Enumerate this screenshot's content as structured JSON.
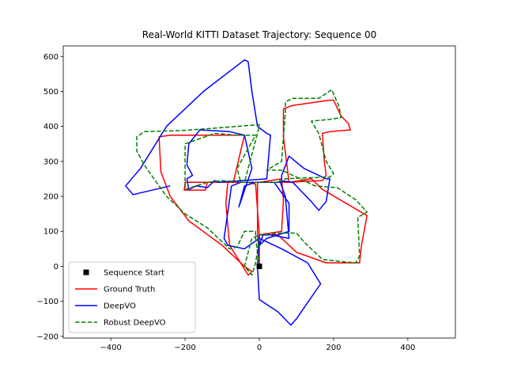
{
  "chart_data": {
    "type": "line",
    "title": "Real-World KITTI Dataset Trajectory: Sequence 00",
    "xlabel": "",
    "ylabel": "",
    "xlim": [
      -528,
      528
    ],
    "ylim": [
      -205,
      630
    ],
    "xticks": [
      -400,
      -200,
      0,
      200,
      400
    ],
    "yticks": [
      -200,
      -100,
      0,
      100,
      200,
      300,
      400,
      500,
      600
    ],
    "xtick_labels": [
      "−400",
      "−200",
      "0",
      "200",
      "400"
    ],
    "ytick_labels": [
      "−200",
      "−100",
      "0",
      "100",
      "200",
      "300",
      "400",
      "500",
      "600"
    ],
    "grid": false,
    "legend_position": "lower-left",
    "legend": [
      "Sequence Start",
      "Ground Truth",
      "DeepVO",
      "Robust DeepVO"
    ],
    "start_point": {
      "name": "Sequence Start",
      "x": 0,
      "y": 0,
      "color": "#000000",
      "marker": "square"
    },
    "series": [
      {
        "name": "Ground Truth",
        "color": "#ff0000",
        "style": "solid",
        "points": [
          [
            0,
            0
          ],
          [
            0,
            90
          ],
          [
            -10,
            235
          ],
          [
            -30,
            240
          ],
          [
            -200,
            240
          ],
          [
            -202,
            218
          ],
          [
            -145,
            218
          ],
          [
            -140,
            240
          ],
          [
            -70,
            240
          ],
          [
            -40,
            375
          ],
          [
            -240,
            375
          ],
          [
            -270,
            370
          ],
          [
            -265,
            270
          ],
          [
            -240,
            200
          ],
          [
            -190,
            130
          ],
          [
            -100,
            60
          ],
          [
            -40,
            0
          ],
          [
            -20,
            -15
          ],
          [
            -30,
            -25
          ],
          [
            -80,
            60
          ],
          [
            -90,
            180
          ],
          [
            -85,
            240
          ],
          [
            0,
            240
          ],
          [
            60,
            250
          ],
          [
            65,
            190
          ],
          [
            60,
            100
          ],
          [
            0,
            90
          ],
          [
            50,
            90
          ],
          [
            100,
            40
          ],
          [
            180,
            10
          ],
          [
            270,
            10
          ],
          [
            275,
            60
          ],
          [
            290,
            145
          ],
          [
            170,
            220
          ],
          [
            140,
            250
          ],
          [
            80,
            240
          ],
          [
            65,
            370
          ],
          [
            65,
            450
          ],
          [
            90,
            460
          ],
          [
            190,
            475
          ],
          [
            200,
            475
          ],
          [
            220,
            430
          ],
          [
            240,
            408
          ],
          [
            245,
            390
          ],
          [
            190,
            385
          ],
          [
            170,
            380
          ],
          [
            175,
            300
          ],
          [
            180,
            260
          ],
          [
            170,
            245
          ],
          [
            75,
            240
          ],
          [
            40,
            240
          ],
          [
            -5,
            240
          ],
          [
            -5,
            100
          ],
          [
            0,
            0
          ]
        ]
      },
      {
        "name": "DeepVO",
        "color": "#0000ff",
        "style": "solid",
        "points": [
          [
            -240,
            230
          ],
          [
            -280,
            220
          ],
          [
            -340,
            205
          ],
          [
            -360,
            230
          ],
          [
            -320,
            280
          ],
          [
            -250,
            400
          ],
          [
            -150,
            500
          ],
          [
            -40,
            590
          ],
          [
            -30,
            585
          ],
          [
            -20,
            500
          ],
          [
            -5,
            400
          ],
          [
            20,
            380
          ],
          [
            30,
            375
          ],
          [
            20,
            250
          ],
          [
            -110,
            240
          ],
          [
            -120,
            245
          ],
          [
            -140,
            225
          ],
          [
            -170,
            230
          ],
          [
            -190,
            220
          ],
          [
            -195,
            250
          ],
          [
            -180,
            260
          ],
          [
            -195,
            290
          ],
          [
            -190,
            350
          ],
          [
            -160,
            390
          ],
          [
            -80,
            385
          ],
          [
            -40,
            375
          ],
          [
            -20,
            280
          ],
          [
            -55,
            170
          ],
          [
            -40,
            230
          ],
          [
            -10,
            240
          ],
          [
            20,
            240
          ],
          [
            40,
            240
          ],
          [
            80,
            180
          ],
          [
            80,
            100
          ],
          [
            50,
            90
          ],
          [
            20,
            80
          ],
          [
            0,
            60
          ],
          [
            10,
            90
          ],
          [
            30,
            90
          ],
          [
            80,
            80
          ],
          [
            70,
            200
          ],
          [
            55,
            245
          ],
          [
            90,
            240
          ],
          [
            140,
            185
          ],
          [
            160,
            160
          ],
          [
            180,
            185
          ],
          [
            190,
            250
          ],
          [
            180,
            250
          ],
          [
            120,
            280
          ],
          [
            80,
            315
          ],
          [
            60,
            260
          ],
          [
            60,
            240
          ],
          [
            -20,
            240
          ],
          [
            -50,
            240
          ],
          [
            -75,
            230
          ],
          [
            -95,
            80
          ],
          [
            -85,
            60
          ],
          [
            -40,
            50
          ],
          [
            0,
            80
          ],
          [
            60,
            50
          ],
          [
            130,
            10
          ],
          [
            165,
            -50
          ],
          [
            100,
            -150
          ],
          [
            85,
            -168
          ],
          [
            50,
            -130
          ],
          [
            0,
            -95
          ],
          [
            -5,
            0
          ],
          [
            0,
            90
          ]
        ]
      },
      {
        "name": "Robust DeepVO",
        "color": "#008000",
        "style": "dashed",
        "points": [
          [
            0,
            0
          ],
          [
            -10,
            80
          ],
          [
            -10,
            100
          ],
          [
            -40,
            100
          ],
          [
            -60,
            55
          ],
          [
            -80,
            50
          ],
          [
            -140,
            110
          ],
          [
            -200,
            150
          ],
          [
            -250,
            200
          ],
          [
            -310,
            290
          ],
          [
            -330,
            330
          ],
          [
            -330,
            370
          ],
          [
            -310,
            385
          ],
          [
            -210,
            388
          ],
          [
            -120,
            395
          ],
          [
            0,
            405
          ],
          [
            0,
            400
          ],
          [
            -30,
            280
          ],
          [
            -40,
            240
          ],
          [
            -100,
            245
          ],
          [
            -140,
            240
          ],
          [
            -200,
            220
          ],
          [
            -200,
            350
          ],
          [
            -120,
            380
          ],
          [
            -60,
            375
          ],
          [
            -10,
            375
          ],
          [
            -60,
            280
          ],
          [
            -50,
            240
          ],
          [
            10,
            240
          ],
          [
            50,
            240
          ],
          [
            70,
            250
          ],
          [
            175,
            255
          ],
          [
            190,
            255
          ],
          [
            200,
            265
          ],
          [
            180,
            300
          ],
          [
            160,
            380
          ],
          [
            140,
            415
          ],
          [
            190,
            420
          ],
          [
            220,
            425
          ],
          [
            215,
            455
          ],
          [
            195,
            505
          ],
          [
            160,
            480
          ],
          [
            90,
            480
          ],
          [
            70,
            470
          ],
          [
            70,
            440
          ],
          [
            60,
            300
          ],
          [
            20,
            275
          ],
          [
            60,
            275
          ],
          [
            150,
            230
          ],
          [
            210,
            225
          ],
          [
            260,
            190
          ],
          [
            290,
            155
          ],
          [
            265,
            140
          ],
          [
            270,
            30
          ],
          [
            260,
            10
          ],
          [
            210,
            15
          ],
          [
            170,
            20
          ],
          [
            120,
            70
          ],
          [
            100,
            95
          ],
          [
            60,
            95
          ],
          [
            0,
            90
          ],
          [
            -20,
            80
          ],
          [
            -40,
            0
          ],
          [
            -20,
            -25
          ],
          [
            -10,
            10
          ],
          [
            0,
            80
          ]
        ]
      }
    ]
  }
}
